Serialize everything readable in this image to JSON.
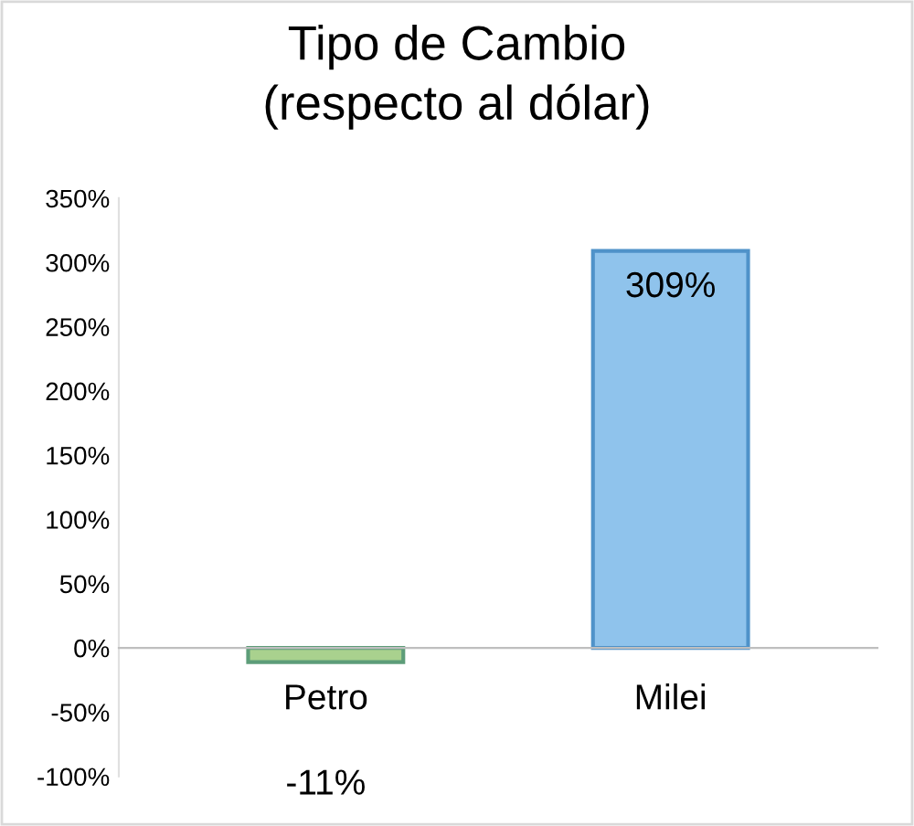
{
  "chart_data": {
    "type": "bar",
    "title": "Tipo de Cambio\n(respecto al dólar)",
    "categories": [
      "Petro",
      "Milei"
    ],
    "values": [
      -11,
      309
    ],
    "colors": [
      "#a9d18e",
      "#8fc3ec"
    ],
    "value_labels": [
      "-11%",
      "309%"
    ],
    "ylim": [
      -100,
      350
    ],
    "yticks": [
      {
        "value": -100,
        "label": "-100%"
      },
      {
        "value": -50,
        "label": "-50%"
      },
      {
        "value": 0,
        "label": "0%"
      },
      {
        "value": 50,
        "label": "50%"
      },
      {
        "value": 100,
        "label": "100%"
      },
      {
        "value": 150,
        "label": "150%"
      },
      {
        "value": 200,
        "label": "200%"
      },
      {
        "value": 250,
        "label": "250%"
      },
      {
        "value": 300,
        "label": "300%"
      },
      {
        "value": 350,
        "label": "350%"
      }
    ],
    "grid": false,
    "legend": false
  }
}
